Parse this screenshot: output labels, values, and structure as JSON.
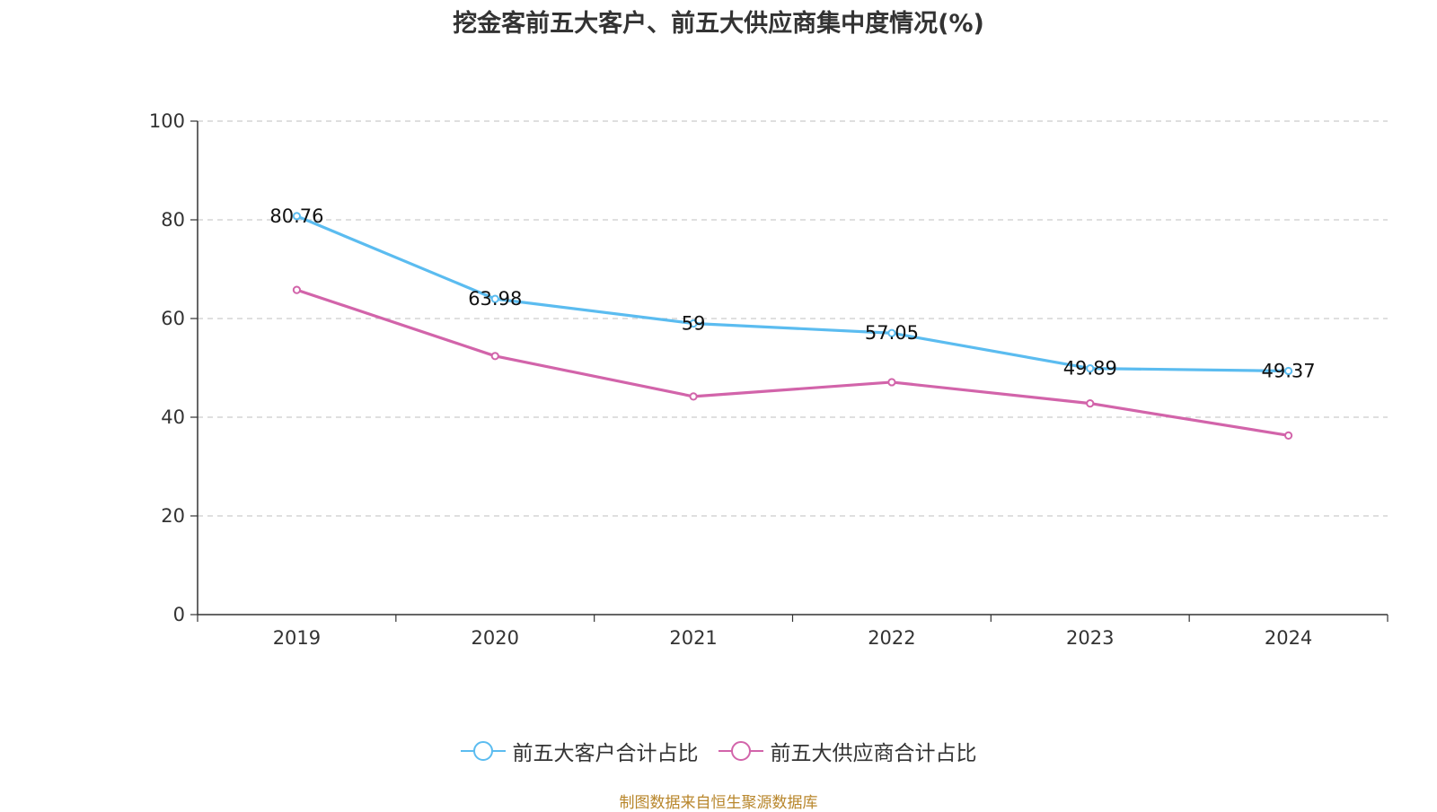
{
  "chart_data": {
    "type": "line",
    "title": "挖金客前五大客户、前五大供应商集中度情况(%)",
    "categories": [
      "2019",
      "2020",
      "2021",
      "2022",
      "2023",
      "2024"
    ],
    "series": [
      {
        "name": "前五大客户合计占比",
        "color": "#5bbcf0",
        "values": [
          80.76,
          63.98,
          59,
          57.05,
          49.89,
          49.37
        ],
        "show_labels": true
      },
      {
        "name": "前五大供应商合计占比",
        "color": "#d264aa",
        "values": [
          65.8,
          52.4,
          44.2,
          47.1,
          42.8,
          36.3
        ],
        "show_labels": false
      }
    ],
    "ylim": [
      0,
      100
    ],
    "yticks": [
      0,
      20,
      40,
      60,
      80,
      100
    ],
    "grid": true,
    "legend_position": "bottom"
  },
  "source_note": "制图数据来自恒生聚源数据库"
}
